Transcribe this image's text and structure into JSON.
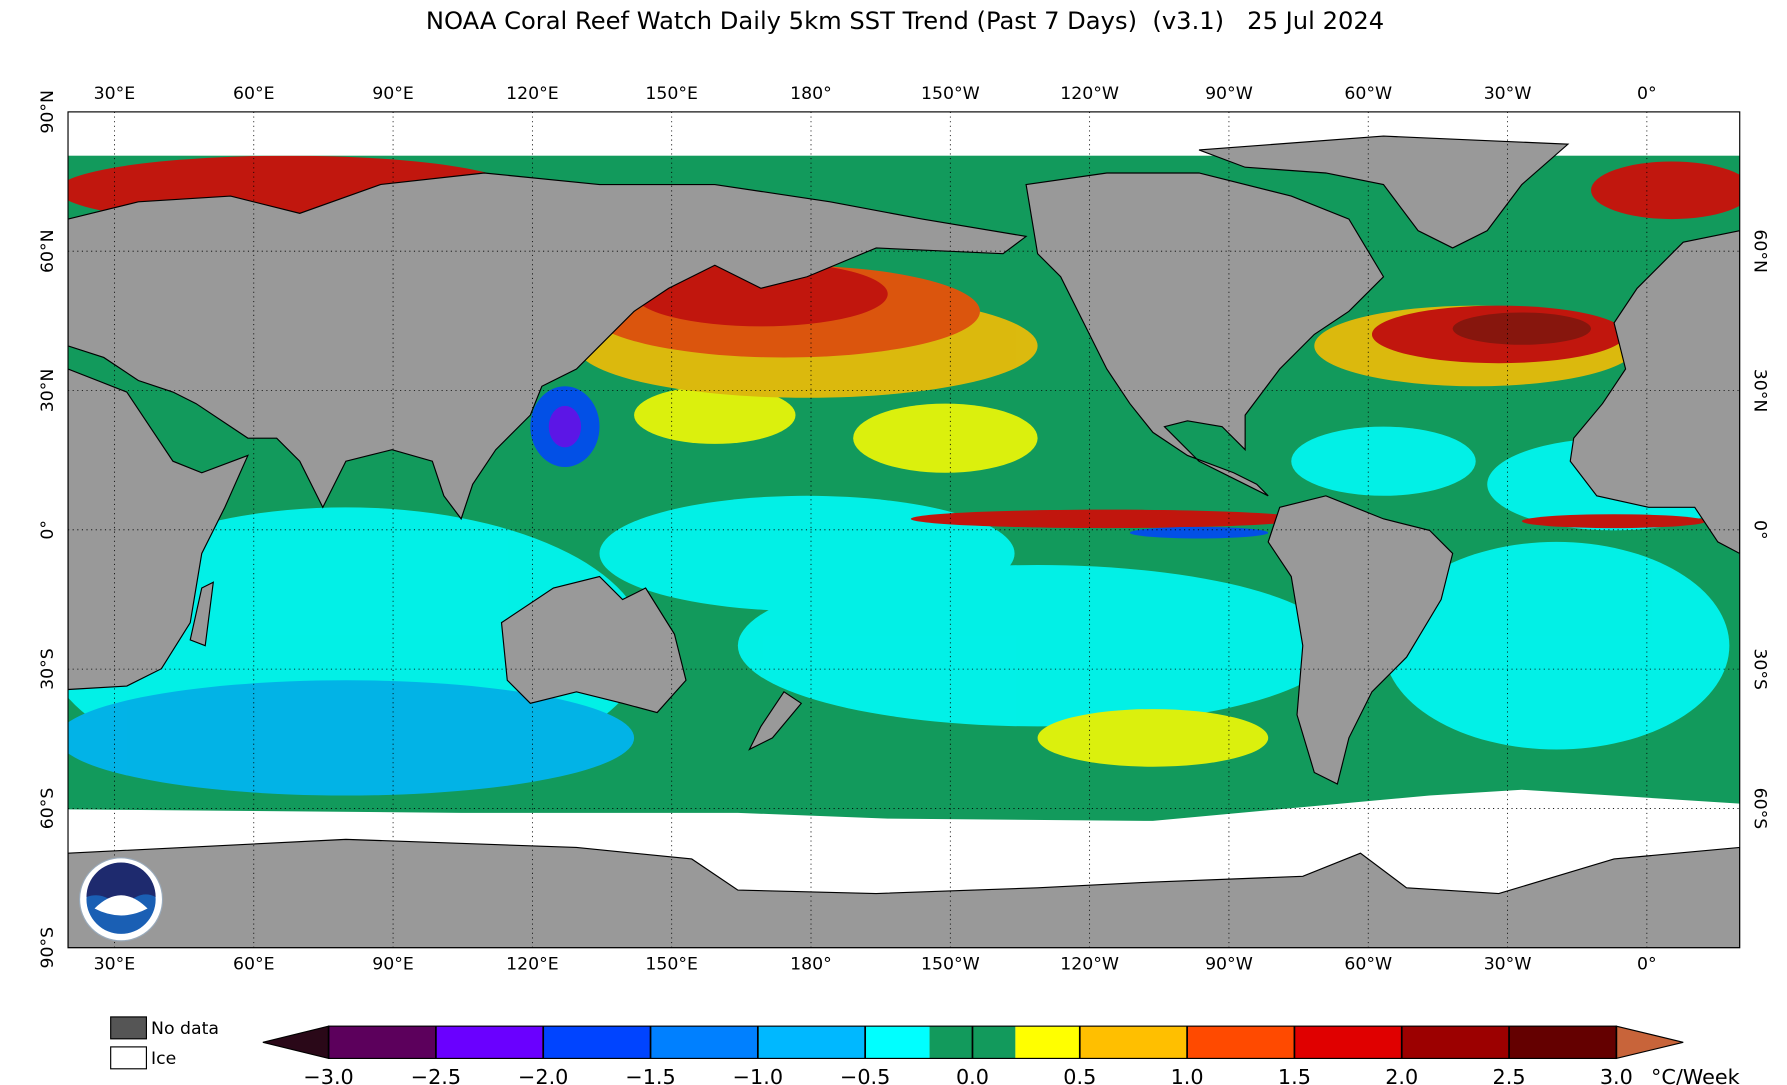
{
  "title": "NOAA Coral Reef Watch Daily 5km SST Trend (Past 7 Days)  (v3.1)   25 Jul 2024",
  "map": {
    "lonlim": [
      20,
      380
    ],
    "latlim": [
      -90,
      90
    ],
    "lon_ticks": [
      {
        "value": 30,
        "label": "30°E"
      },
      {
        "value": 60,
        "label": "60°E"
      },
      {
        "value": 90,
        "label": "90°E"
      },
      {
        "value": 120,
        "label": "120°E"
      },
      {
        "value": 150,
        "label": "150°E"
      },
      {
        "value": 180,
        "label": "180°"
      },
      {
        "value": -150,
        "label": "150°W"
      },
      {
        "value": -120,
        "label": "120°W"
      },
      {
        "value": -90,
        "label": "90°W"
      },
      {
        "value": -60,
        "label": "60°W"
      },
      {
        "value": -30,
        "label": "30°W"
      },
      {
        "value": 0,
        "label": "0°"
      }
    ],
    "lat_ticks": [
      {
        "value": 90,
        "label": "90°N"
      },
      {
        "value": 60,
        "label": "60°N"
      },
      {
        "value": 30,
        "label": "30°N"
      },
      {
        "value": 0,
        "label": "0°"
      },
      {
        "value": -30,
        "label": "30°S"
      },
      {
        "value": -60,
        "label": "60°S"
      },
      {
        "value": -90,
        "label": "90°S"
      }
    ]
  },
  "legend": [
    {
      "label": "No data",
      "color": "#555555"
    },
    {
      "label": "Ice",
      "color": "#ffffff"
    }
  ],
  "colorbar": {
    "bounds": [
      -3,
      -2.5,
      -2,
      -1.5,
      -1,
      -0.5,
      -0.2,
      0,
      0.2,
      0.5,
      1,
      1.5,
      2,
      2.5,
      3
    ],
    "colors": [
      "#5c005c",
      "#6a00ff",
      "#0044ff",
      "#0080ff",
      "#00b8ff",
      "#00ffff",
      "#129a5c",
      "#129a5c",
      "#ffff00",
      "#ffbf00",
      "#ff4a00",
      "#e00000",
      "#9c0000",
      "#640000"
    ],
    "under_color": "#2a0818",
    "over_color": "#c8643a",
    "ticks": [
      {
        "value": -3,
        "label": "−3.0"
      },
      {
        "value": -2.5,
        "label": "−2.5"
      },
      {
        "value": -2,
        "label": "−2.0"
      },
      {
        "value": -1.5,
        "label": "−1.5"
      },
      {
        "value": -1,
        "label": "−1.0"
      },
      {
        "value": -0.5,
        "label": "−0.5"
      },
      {
        "value": 0,
        "label": "0.0"
      },
      {
        "value": 0.5,
        "label": "0.5"
      },
      {
        "value": 1,
        "label": "1.0"
      },
      {
        "value": 1.5,
        "label": "1.5"
      },
      {
        "value": 2,
        "label": "2.0"
      },
      {
        "value": 2.5,
        "label": "2.5"
      },
      {
        "value": 3,
        "label": "3.0"
      }
    ],
    "unit": "°C/Week"
  }
}
